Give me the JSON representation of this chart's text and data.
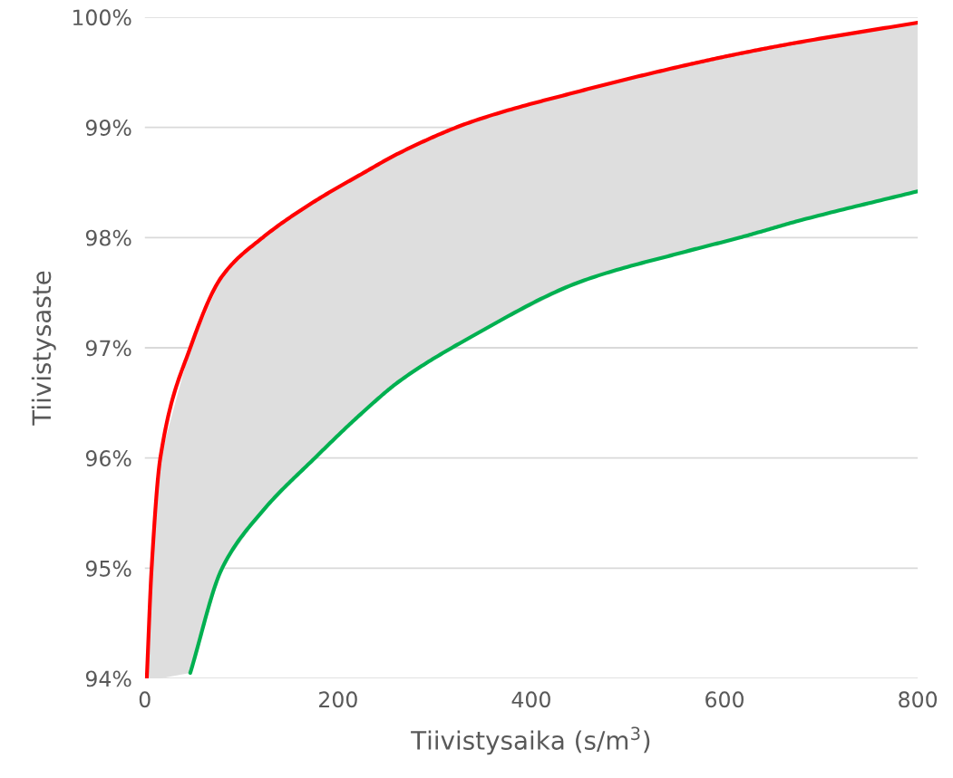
{
  "chart_data": {
    "type": "line",
    "xlabel": "Tiivistysaika (s/m$^{3}$)",
    "ylabel": "Tiivistysaste",
    "x": [
      2,
      7,
      16,
      47,
      80,
      122,
      176,
      225,
      264,
      338,
      451,
      563,
      616,
      676,
      800
    ],
    "series": [
      {
        "color": "#ff0000",
        "values": [
          94.0,
          95.0,
          96.0,
          97.0,
          97.65,
          98.0,
          98.33,
          98.58,
          98.77,
          99.05,
          99.33,
          99.57,
          99.67,
          99.77,
          99.95
        ]
      },
      {
        "color": "#00b050",
        "values": [
          null,
          null,
          null,
          94.05,
          95.0,
          95.52,
          96.0,
          96.41,
          96.7,
          97.1,
          97.6,
          97.88,
          98.0,
          98.15,
          98.42
        ]
      }
    ],
    "xlim": [
      0,
      800
    ],
    "xticks": [
      0,
      200,
      400,
      600,
      800
    ],
    "ylim": [
      94,
      100
    ],
    "yticks": [
      {
        "value": 94,
        "label": "94%"
      },
      {
        "value": 95,
        "label": "95%"
      },
      {
        "value": 96,
        "label": "96%"
      },
      {
        "value": 97,
        "label": "97%"
      },
      {
        "value": 98,
        "label": "98%"
      },
      {
        "value": 99,
        "label": "99%"
      },
      {
        "value": 100,
        "label": "100%"
      }
    ],
    "grid": "y"
  }
}
